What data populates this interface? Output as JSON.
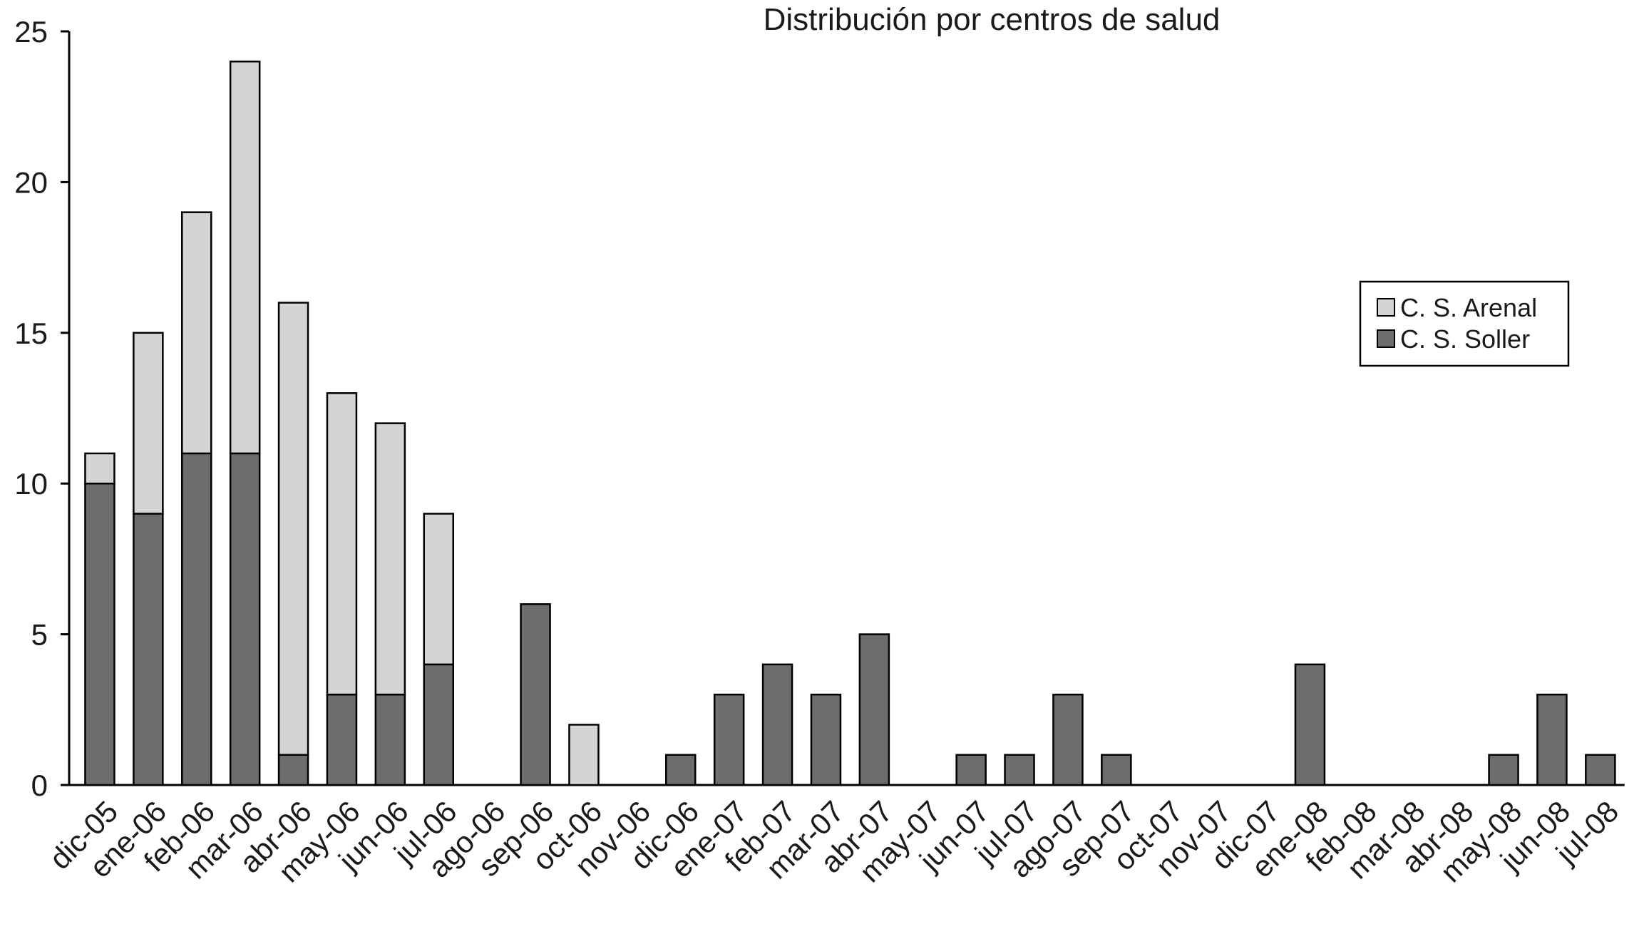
{
  "chart_data": {
    "type": "stacked_bar",
    "title": "Distribución por centros de salud",
    "categories": [
      "dic-05",
      "ene-06",
      "feb-06",
      "mar-06",
      "abr-06",
      "may-06",
      "jun-06",
      "jul-06",
      "ago-06",
      "sep-06",
      "oct-06",
      "nov-06",
      "dic-06",
      "ene-07",
      "feb-07",
      "mar-07",
      "abr-07",
      "may-07",
      "jun-07",
      "jul-07",
      "ago-07",
      "sep-07",
      "oct-07",
      "nov-07",
      "dic-07",
      "ene-08",
      "feb-08",
      "mar-08",
      "abr-08",
      "may-08",
      "jun-08",
      "jul-08"
    ],
    "series": [
      {
        "name": "C. S. Arenal",
        "color": "#d4d4d4",
        "values": [
          1,
          6,
          8,
          13,
          15,
          10,
          9,
          5,
          0,
          0,
          2,
          0,
          0,
          0,
          0,
          0,
          0,
          0,
          0,
          0,
          0,
          0,
          0,
          0,
          0,
          0,
          0,
          0,
          0,
          0,
          0,
          0
        ]
      },
      {
        "name": "C. S. Soller",
        "color": "#6d6d6d",
        "values": [
          10,
          9,
          11,
          11,
          1,
          3,
          3,
          4,
          0,
          6,
          0,
          0,
          1,
          3,
          4,
          3,
          5,
          0,
          1,
          1,
          3,
          1,
          0,
          0,
          0,
          4,
          0,
          0,
          0,
          1,
          3,
          1
        ]
      }
    ],
    "ylim": [
      0,
      25
    ],
    "yticks": [
      0,
      5,
      10,
      15,
      20,
      25
    ],
    "grid": false,
    "legend": "upper right"
  }
}
